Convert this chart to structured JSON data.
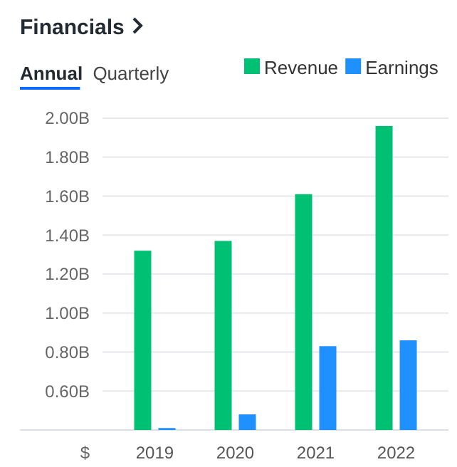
{
  "chart_data": {
    "type": "bar",
    "title": "Financials",
    "annotations": [
      "Annual",
      "Quarterly"
    ],
    "ylabel": "$",
    "categories": [
      "2019",
      "2020",
      "2021",
      "2022"
    ],
    "series": [
      {
        "name": "Revenue",
        "color": "#00c073",
        "values": [
          1.32,
          1.37,
          1.61,
          1.96
        ]
      },
      {
        "name": "Earnings",
        "color": "#1e90ff",
        "values": [
          0.41,
          0.48,
          0.83,
          0.86
        ]
      }
    ],
    "ylim": [
      0.4,
      2.0
    ],
    "yticks": [
      {
        "value": 0.6,
        "label": "0.60B"
      },
      {
        "value": 0.8,
        "label": "0.80B"
      },
      {
        "value": 1.0,
        "label": "1.00B"
      },
      {
        "value": 1.2,
        "label": "1.20B"
      },
      {
        "value": 1.4,
        "label": "1.40B"
      },
      {
        "value": 1.6,
        "label": "1.60B"
      },
      {
        "value": 1.8,
        "label": "1.80B"
      },
      {
        "value": 2.0,
        "label": "2.00B"
      }
    ],
    "grid": "y",
    "legend": "top right"
  }
}
